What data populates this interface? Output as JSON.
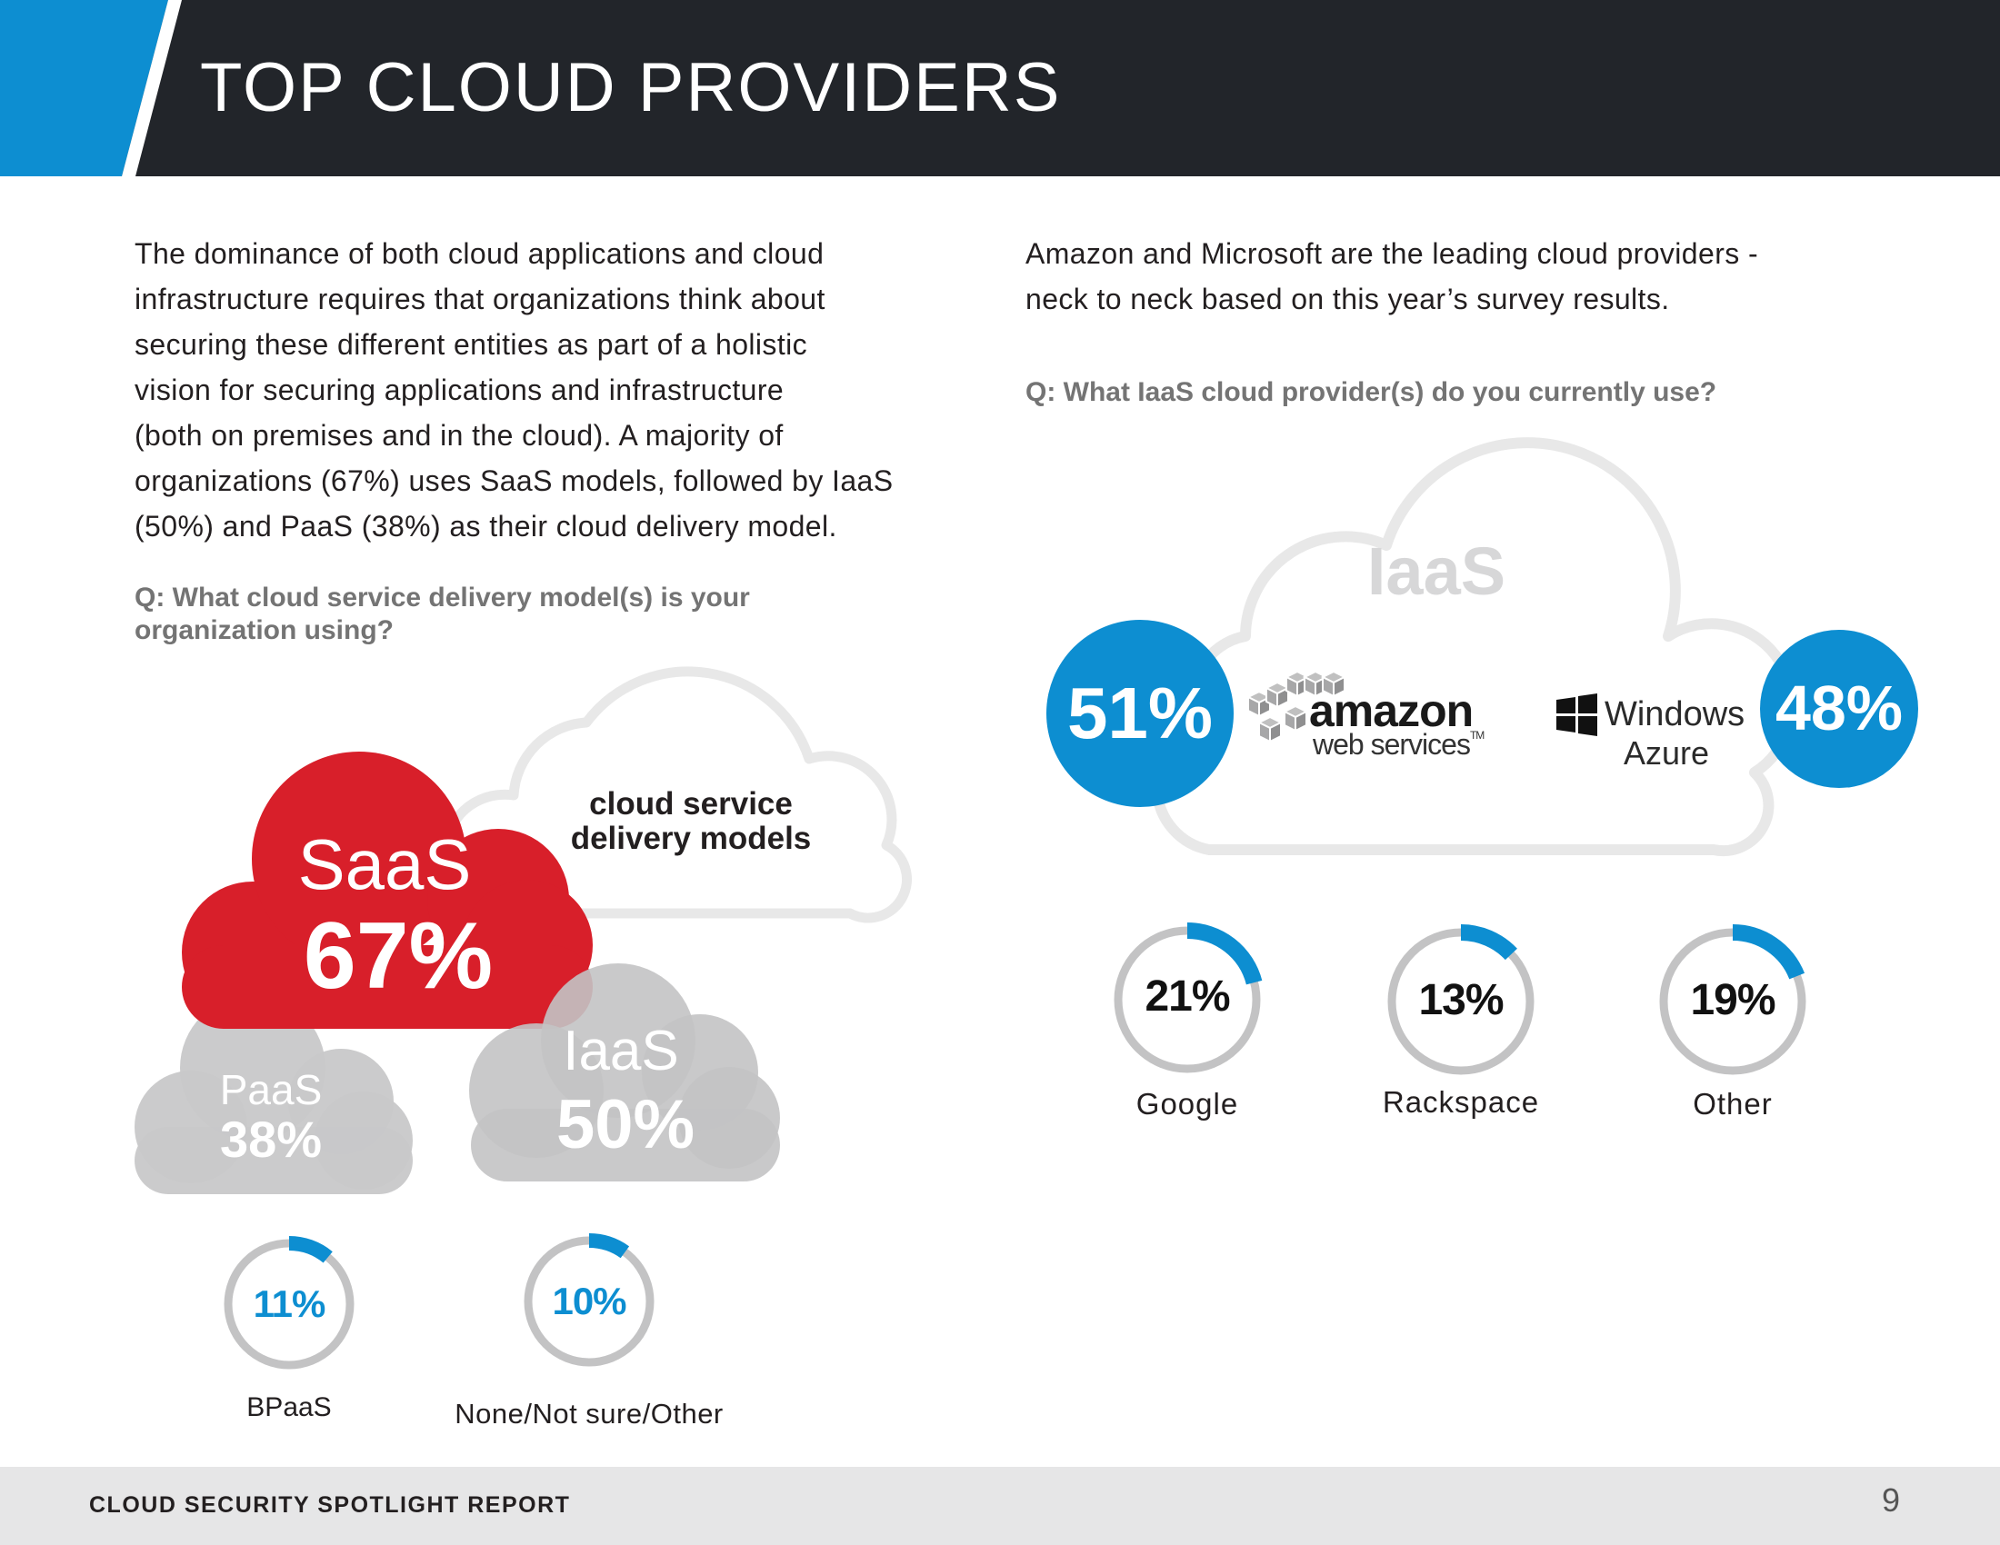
{
  "header": {
    "title": "TOP CLOUD PROVIDERS",
    "bg_color": "#22252a",
    "accent_color": "#0d8ed1"
  },
  "left": {
    "paragraph_lines": [
      "The dominance of both cloud applications and cloud",
      "infrastructure requires that organizations think about",
      "securing these different entities as part of a holistic",
      "vision for securing applications and infrastructure",
      "(both on premises and in the cloud). A majority of",
      "organizations (67%) uses SaaS models, followed by IaaS",
      "(50%) and PaaS (38%) as their cloud delivery model."
    ],
    "question_lines": [
      "Q: What cloud service delivery model(s) is your",
      "organization using?"
    ],
    "center_label_lines": [
      "cloud service",
      "delivery models"
    ],
    "saas": {
      "name": "SaaS",
      "value": "67%"
    },
    "paas": {
      "name": "PaaS",
      "value": "38%"
    },
    "iaas": {
      "name": "IaaS",
      "value": "50%"
    },
    "rings": [
      {
        "label": "BPaaS",
        "value_text": "11%",
        "fraction": 0.11
      },
      {
        "label": "None/Not sure/Other",
        "value_text": "10%",
        "fraction": 0.1
      }
    ]
  },
  "right": {
    "paragraph_lines": [
      "Amazon and Microsoft are the leading cloud providers -",
      "neck to neck based on this year’s survey results."
    ],
    "question": "Q: What IaaS cloud provider(s) do you currently use?",
    "cloud_label": "IaaS",
    "amazon": {
      "value": "51%",
      "logo_word": "amazon",
      "logo_sub": "web services",
      "logo_tm": "TM"
    },
    "azure": {
      "value": "48%",
      "logo_line1": "Windows",
      "logo_line2": "Azure"
    },
    "rings": [
      {
        "label": "Google",
        "value_text": "21%",
        "fraction": 0.21
      },
      {
        "label": "Rackspace",
        "value_text": "13%",
        "fraction": 0.13
      },
      {
        "label": "Other",
        "value_text": "19%",
        "fraction": 0.19
      }
    ]
  },
  "colors": {
    "blue": "#0d8ed1",
    "red": "#d81f2a",
    "gray_cloud": "#c8c8c9",
    "ring_gray": "#c3c3c4",
    "outline_gray": "#e8e8e8"
  },
  "footer": {
    "title": "CLOUD SECURITY SPOTLIGHT REPORT",
    "page_number": "9"
  }
}
